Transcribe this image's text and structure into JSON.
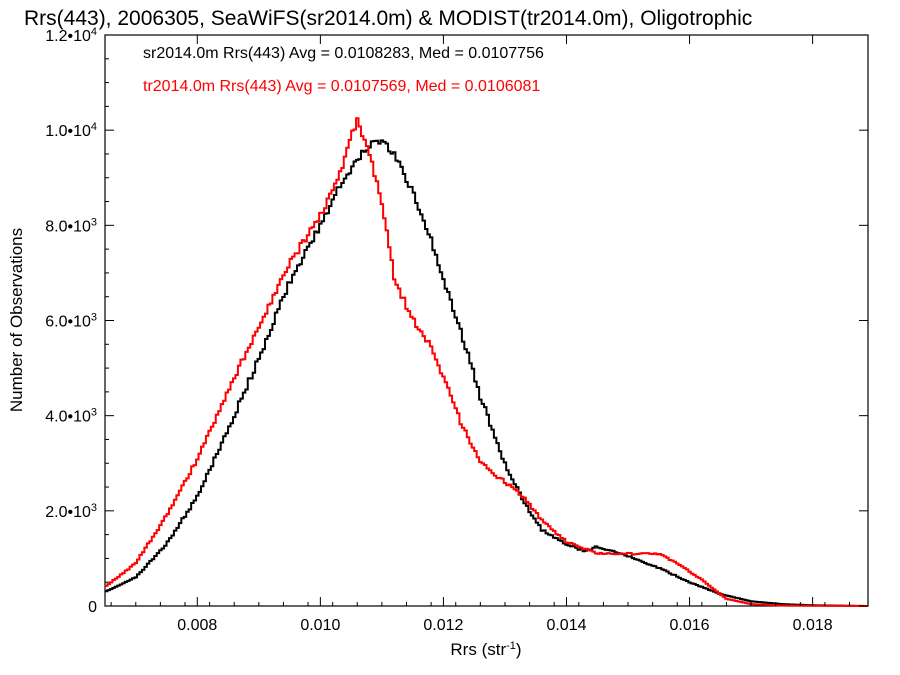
{
  "chart_data": {
    "type": "line",
    "title": "Rrs(443), 2006305, SeaWiFS(sr2014.0m) & MODIST(tr2014.0m), Oligotrophic",
    "xlabel": "Rrs (str⁻¹)",
    "ylabel": "Number of Observations",
    "xlim": [
      0.0065,
      0.0189
    ],
    "ylim": [
      0,
      12000
    ],
    "xticks": [
      0.008,
      0.01,
      0.012,
      0.014,
      0.016,
      0.018
    ],
    "xtick_labels": [
      "0.008",
      "0.010",
      "0.012",
      "0.014",
      "0.016",
      "0.018"
    ],
    "yticks": [
      0,
      2000,
      4000,
      6000,
      8000,
      10000,
      12000
    ],
    "ytick_labels": [
      {
        "mant": "0",
        "exp": ""
      },
      {
        "mant": "2.0•10",
        "exp": "3"
      },
      {
        "mant": "4.0•10",
        "exp": "3"
      },
      {
        "mant": "6.0•10",
        "exp": "3"
      },
      {
        "mant": "8.0•10",
        "exp": "3"
      },
      {
        "mant": "1.0•10",
        "exp": "4"
      },
      {
        "mant": "1.2•10",
        "exp": "4"
      }
    ],
    "series": [
      {
        "name": "sr2014.0m Rrs(443) Avg = 0.0108283, Med = 0.0107756",
        "color": "#000000",
        "x": [
          0.0065,
          0.007,
          0.0075,
          0.008,
          0.0085,
          0.009,
          0.0095,
          0.01,
          0.0103,
          0.0106,
          0.0108,
          0.011,
          0.0112,
          0.0115,
          0.0118,
          0.012,
          0.0123,
          0.0126,
          0.013,
          0.0133,
          0.0136,
          0.014,
          0.0143,
          0.0145,
          0.015,
          0.0155,
          0.016,
          0.0165,
          0.017,
          0.0175,
          0.018,
          0.0189
        ],
        "y": [
          300,
          600,
          1300,
          2300,
          3700,
          5200,
          6800,
          8000,
          8800,
          9400,
          9700,
          9800,
          9500,
          8700,
          7700,
          6900,
          5700,
          4400,
          3000,
          2200,
          1600,
          1300,
          1150,
          1250,
          1050,
          800,
          500,
          250,
          100,
          40,
          15,
          0
        ]
      },
      {
        "name": "tr2014.0m Rrs(443) Avg = 0.0107569, Med = 0.0106081",
        "color": "#ff0000",
        "x": [
          0.0065,
          0.007,
          0.0075,
          0.008,
          0.0085,
          0.009,
          0.0095,
          0.01,
          0.0103,
          0.0105,
          0.0106,
          0.0108,
          0.011,
          0.0112,
          0.0114,
          0.0116,
          0.0118,
          0.012,
          0.0123,
          0.0126,
          0.013,
          0.0133,
          0.0136,
          0.014,
          0.0143,
          0.0145,
          0.015,
          0.0155,
          0.0158,
          0.0162,
          0.0166,
          0.017,
          0.0175,
          0.018,
          0.0189
        ],
        "y": [
          400,
          900,
          1900,
          3100,
          4500,
          5900,
          7200,
          8200,
          9000,
          9900,
          10200,
          9500,
          8500,
          6900,
          6300,
          5800,
          5500,
          4800,
          3800,
          3000,
          2600,
          2300,
          1800,
          1350,
          1200,
          1100,
          1100,
          1100,
          900,
          550,
          150,
          40,
          10,
          5,
          0
        ]
      }
    ],
    "grid": false,
    "legend_position": "top-left"
  }
}
